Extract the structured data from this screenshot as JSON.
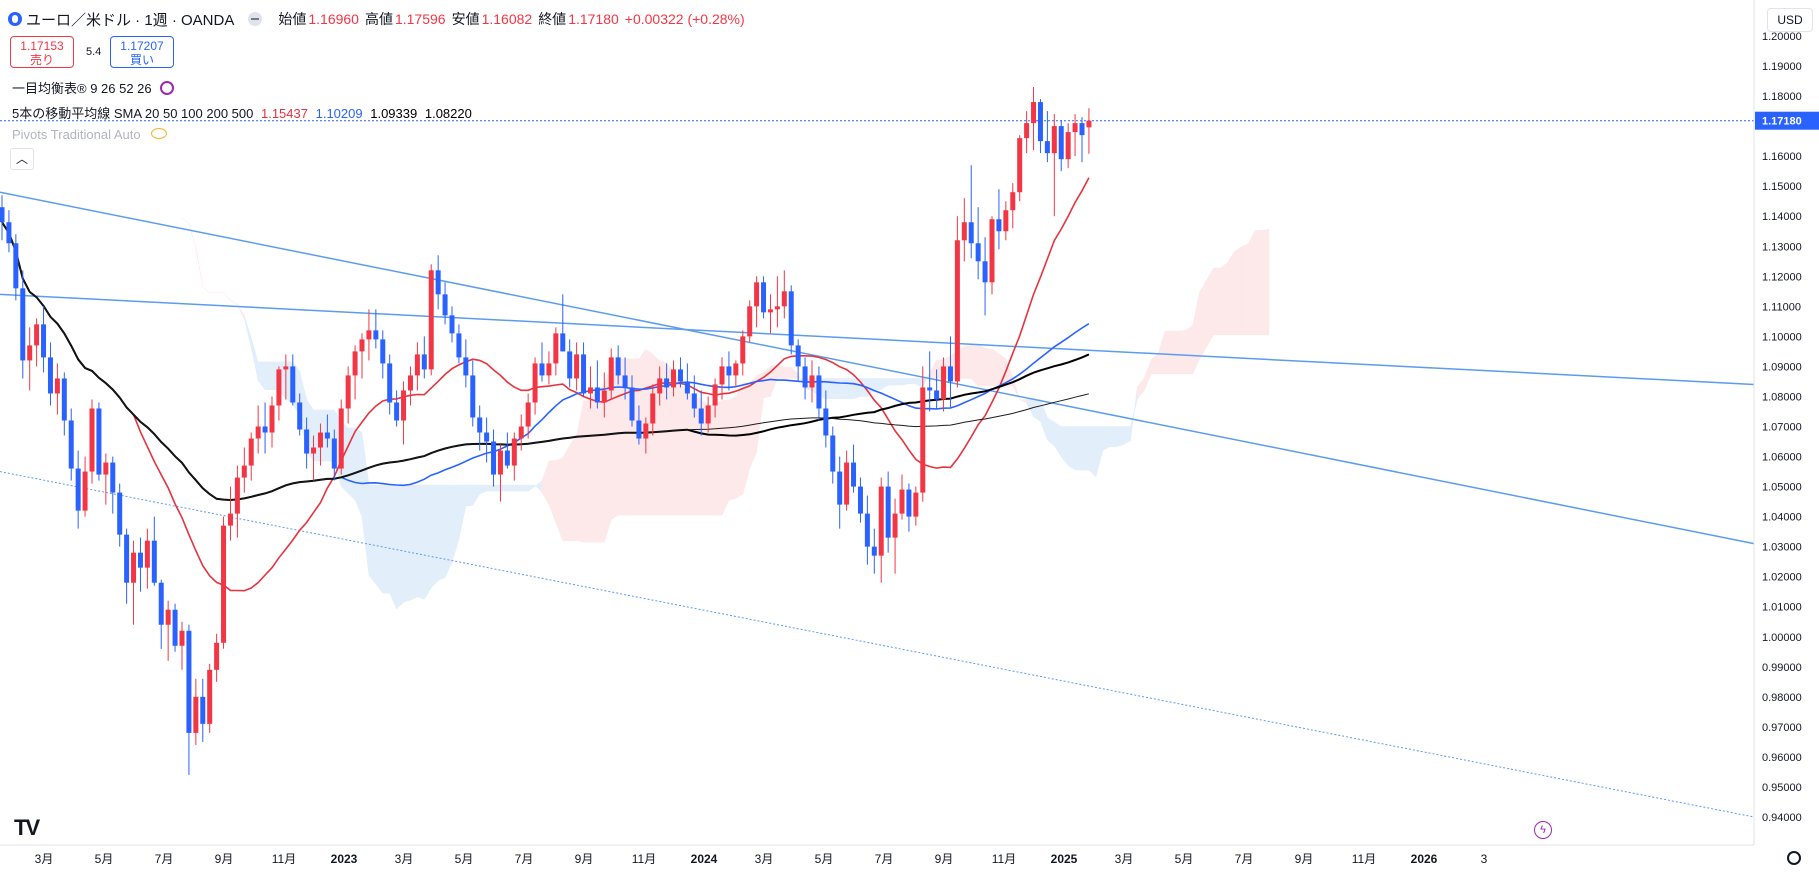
{
  "header": {
    "symbol": "ユーロ／米ドル · 1週 · OANDA",
    "open_label": "始値",
    "open": "1.16960",
    "high_label": "高値",
    "high": "1.17596",
    "low_label": "安値",
    "low": "1.16082",
    "close_label": "終値",
    "close": "1.17180",
    "change": "+0.00322 (+0.28%)"
  },
  "trade": {
    "sell_price": "1.17153",
    "sell_label": "売り",
    "buy_price": "1.17207",
    "buy_label": "買い",
    "spread": "5.4"
  },
  "indicators": {
    "ichimoku": "一目均衡表® 9 26 52 26",
    "ma_label": "5本の移動平均線 SMA 20 50 100 200 500",
    "ma_values": [
      "1.15437",
      "1.10209",
      "1.09339",
      "1.08220"
    ],
    "pivots": "Pivots Traditional Auto"
  },
  "currency": "USD",
  "collapse_icon": "chevron-up-icon",
  "colors": {
    "up": "#f23645",
    "down": "#2962ff",
    "sma20": "#e5333f",
    "sma50": "#2962ff",
    "sma100": "#000000",
    "sma200": "#1b1b1b",
    "trend": "#5b9cf0",
    "cloud_up": "#fde8ea",
    "cloud_down": "#e3eefb"
  },
  "chart_data": {
    "type": "candlestick",
    "timeframe": "1W",
    "ylim": [
      0.935,
      1.205
    ],
    "y_ticks": [
      "1.20000",
      "1.19000",
      "1.18000",
      "1.16000",
      "1.15000",
      "1.14000",
      "1.13000",
      "1.12000",
      "1.11000",
      "1.10000",
      "1.09000",
      "1.08000",
      "1.07000",
      "1.06000",
      "1.05000",
      "1.04000",
      "1.03000",
      "1.02000",
      "1.01000",
      "1.00000",
      "0.99000",
      "0.98000",
      "0.97000",
      "0.96000",
      "0.95000",
      "0.94000"
    ],
    "last_price": "1.17180",
    "x_ticks": [
      "3月",
      "5月",
      "7月",
      "9月",
      "11月",
      "2023",
      "3月",
      "5月",
      "7月",
      "9月",
      "11月",
      "2024",
      "3月",
      "5月",
      "7月",
      "9月",
      "11月",
      "2025",
      "3月",
      "5月",
      "7月",
      "9月",
      "11月",
      "2026",
      "3"
    ],
    "x_tick_months": [
      2,
      4,
      6,
      8,
      10,
      12,
      14,
      16,
      18,
      20,
      22,
      24,
      26,
      28,
      30,
      32,
      34,
      36,
      38,
      40,
      42,
      44,
      46,
      48,
      50
    ],
    "start_month": 0.6,
    "candles": [
      [
        1.143,
        1.147,
        1.132,
        1.138
      ],
      [
        1.138,
        1.142,
        1.128,
        1.131
      ],
      [
        1.131,
        1.134,
        1.112,
        1.116
      ],
      [
        1.116,
        1.122,
        1.086,
        1.092
      ],
      [
        1.092,
        1.103,
        1.082,
        1.097
      ],
      [
        1.097,
        1.106,
        1.09,
        1.104
      ],
      [
        1.104,
        1.11,
        1.088,
        1.093
      ],
      [
        1.093,
        1.098,
        1.077,
        1.081
      ],
      [
        1.081,
        1.091,
        1.074,
        1.086
      ],
      [
        1.086,
        1.088,
        1.067,
        1.072
      ],
      [
        1.072,
        1.076,
        1.052,
        1.056
      ],
      [
        1.056,
        1.062,
        1.036,
        1.042
      ],
      [
        1.042,
        1.06,
        1.04,
        1.055
      ],
      [
        1.055,
        1.079,
        1.051,
        1.076
      ],
      [
        1.076,
        1.078,
        1.052,
        1.054
      ],
      [
        1.054,
        1.061,
        1.044,
        1.058
      ],
      [
        1.058,
        1.06,
        1.041,
        1.048
      ],
      [
        1.048,
        1.051,
        1.03,
        1.034
      ],
      [
        1.034,
        1.036,
        1.011,
        1.018
      ],
      [
        1.018,
        1.032,
        1.004,
        1.028
      ],
      [
        1.028,
        1.033,
        1.015,
        1.023
      ],
      [
        1.023,
        1.036,
        1.016,
        1.032
      ],
      [
        1.032,
        1.04,
        1.017,
        1.018
      ],
      [
        1.018,
        1.019,
        0.996,
        1.004
      ],
      [
        1.004,
        1.012,
        0.992,
        1.009
      ],
      [
        1.009,
        1.011,
        0.995,
        0.997
      ],
      [
        0.997,
        1.005,
        0.989,
        1.002
      ],
      [
        1.002,
        1.004,
        0.954,
        0.968
      ],
      [
        0.968,
        0.986,
        0.964,
        0.98
      ],
      [
        0.98,
        0.986,
        0.965,
        0.971
      ],
      [
        0.971,
        0.991,
        0.968,
        0.989
      ],
      [
        0.989,
        1.001,
        0.985,
        0.998
      ],
      [
        0.998,
        1.04,
        0.996,
        1.037
      ],
      [
        1.037,
        1.05,
        1.032,
        1.041
      ],
      [
        1.041,
        1.057,
        1.033,
        1.053
      ],
      [
        1.053,
        1.063,
        1.048,
        1.057
      ],
      [
        1.057,
        1.068,
        1.052,
        1.066
      ],
      [
        1.066,
        1.077,
        1.061,
        1.07
      ],
      [
        1.07,
        1.078,
        1.061,
        1.068
      ],
      [
        1.068,
        1.08,
        1.063,
        1.077
      ],
      [
        1.077,
        1.09,
        1.072,
        1.089
      ],
      [
        1.089,
        1.094,
        1.079,
        1.09
      ],
      [
        1.09,
        1.094,
        1.077,
        1.078
      ],
      [
        1.078,
        1.081,
        1.067,
        1.069
      ],
      [
        1.069,
        1.073,
        1.056,
        1.061
      ],
      [
        1.061,
        1.067,
        1.052,
        1.063
      ],
      [
        1.063,
        1.071,
        1.057,
        1.068
      ],
      [
        1.068,
        1.074,
        1.063,
        1.066
      ],
      [
        1.066,
        1.069,
        1.052,
        1.056
      ],
      [
        1.056,
        1.079,
        1.054,
        1.076
      ],
      [
        1.076,
        1.09,
        1.071,
        1.087
      ],
      [
        1.087,
        1.097,
        1.079,
        1.095
      ],
      [
        1.095,
        1.101,
        1.086,
        1.099
      ],
      [
        1.099,
        1.109,
        1.092,
        1.102
      ],
      [
        1.102,
        1.109,
        1.096,
        1.099
      ],
      [
        1.099,
        1.102,
        1.086,
        1.091
      ],
      [
        1.091,
        1.094,
        1.074,
        1.078
      ],
      [
        1.078,
        1.082,
        1.07,
        1.072
      ],
      [
        1.072,
        1.085,
        1.064,
        1.082
      ],
      [
        1.082,
        1.09,
        1.077,
        1.087
      ],
      [
        1.087,
        1.098,
        1.082,
        1.094
      ],
      [
        1.094,
        1.1,
        1.086,
        1.089
      ],
      [
        1.089,
        1.124,
        1.087,
        1.122
      ],
      [
        1.122,
        1.127,
        1.109,
        1.114
      ],
      [
        1.114,
        1.118,
        1.104,
        1.107
      ],
      [
        1.107,
        1.11,
        1.098,
        1.101
      ],
      [
        1.101,
        1.104,
        1.091,
        1.093
      ],
      [
        1.093,
        1.099,
        1.083,
        1.087
      ],
      [
        1.087,
        1.092,
        1.07,
        1.073
      ],
      [
        1.073,
        1.077,
        1.062,
        1.068
      ],
      [
        1.068,
        1.073,
        1.058,
        1.065
      ],
      [
        1.065,
        1.069,
        1.05,
        1.054
      ],
      [
        1.054,
        1.064,
        1.045,
        1.062
      ],
      [
        1.062,
        1.068,
        1.056,
        1.057
      ],
      [
        1.057,
        1.068,
        1.052,
        1.066
      ],
      [
        1.066,
        1.074,
        1.062,
        1.07
      ],
      [
        1.07,
        1.081,
        1.066,
        1.078
      ],
      [
        1.078,
        1.093,
        1.074,
        1.091
      ],
      [
        1.091,
        1.098,
        1.085,
        1.087
      ],
      [
        1.087,
        1.095,
        1.084,
        1.091
      ],
      [
        1.091,
        1.103,
        1.087,
        1.101
      ],
      [
        1.101,
        1.114,
        1.095,
        1.095
      ],
      [
        1.095,
        1.099,
        1.083,
        1.086
      ],
      [
        1.086,
        1.098,
        1.082,
        1.094
      ],
      [
        1.094,
        1.098,
        1.08,
        1.081
      ],
      [
        1.081,
        1.09,
        1.076,
        1.083
      ],
      [
        1.083,
        1.092,
        1.076,
        1.078
      ],
      [
        1.078,
        1.088,
        1.073,
        1.082
      ],
      [
        1.082,
        1.096,
        1.079,
        1.093
      ],
      [
        1.093,
        1.097,
        1.084,
        1.087
      ],
      [
        1.087,
        1.093,
        1.079,
        1.083
      ],
      [
        1.083,
        1.087,
        1.07,
        1.072
      ],
      [
        1.072,
        1.077,
        1.064,
        1.066
      ],
      [
        1.066,
        1.073,
        1.061,
        1.071
      ],
      [
        1.071,
        1.084,
        1.067,
        1.081
      ],
      [
        1.081,
        1.09,
        1.077,
        1.086
      ],
      [
        1.086,
        1.091,
        1.079,
        1.083
      ],
      [
        1.083,
        1.092,
        1.08,
        1.089
      ],
      [
        1.089,
        1.093,
        1.083,
        1.085
      ],
      [
        1.085,
        1.091,
        1.079,
        1.081
      ],
      [
        1.081,
        1.087,
        1.073,
        1.076
      ],
      [
        1.076,
        1.082,
        1.067,
        1.071
      ],
      [
        1.071,
        1.08,
        1.068,
        1.077
      ],
      [
        1.077,
        1.086,
        1.073,
        1.084
      ],
      [
        1.084,
        1.093,
        1.079,
        1.09
      ],
      [
        1.09,
        1.095,
        1.082,
        1.087
      ],
      [
        1.087,
        1.092,
        1.083,
        1.091
      ],
      [
        1.091,
        1.102,
        1.087,
        1.1
      ],
      [
        1.1,
        1.112,
        1.098,
        1.11
      ],
      [
        1.11,
        1.12,
        1.103,
        1.118
      ],
      [
        1.118,
        1.12,
        1.106,
        1.108
      ],
      [
        1.108,
        1.114,
        1.101,
        1.109
      ],
      [
        1.109,
        1.12,
        1.103,
        1.11
      ],
      [
        1.11,
        1.122,
        1.106,
        1.115
      ],
      [
        1.115,
        1.117,
        1.094,
        1.097
      ],
      [
        1.097,
        1.099,
        1.085,
        1.09
      ],
      [
        1.09,
        1.093,
        1.079,
        1.083
      ],
      [
        1.083,
        1.092,
        1.078,
        1.087
      ],
      [
        1.087,
        1.09,
        1.072,
        1.076
      ],
      [
        1.076,
        1.082,
        1.063,
        1.067
      ],
      [
        1.067,
        1.07,
        1.051,
        1.055
      ],
      [
        1.055,
        1.06,
        1.036,
        1.044
      ],
      [
        1.044,
        1.062,
        1.042,
        1.058
      ],
      [
        1.058,
        1.064,
        1.048,
        1.05
      ],
      [
        1.05,
        1.053,
        1.038,
        1.041
      ],
      [
        1.041,
        1.047,
        1.024,
        1.03
      ],
      [
        1.03,
        1.036,
        1.021,
        1.027
      ],
      [
        1.027,
        1.053,
        1.018,
        1.05
      ],
      [
        1.05,
        1.055,
        1.028,
        1.033
      ],
      [
        1.033,
        1.046,
        1.021,
        1.041
      ],
      [
        1.041,
        1.054,
        1.039,
        1.049
      ],
      [
        1.049,
        1.051,
        1.035,
        1.04
      ],
      [
        1.04,
        1.05,
        1.037,
        1.048
      ],
      [
        1.048,
        1.09,
        1.045,
        1.083
      ],
      [
        1.083,
        1.095,
        1.075,
        1.082
      ],
      [
        1.082,
        1.089,
        1.076,
        1.079
      ],
      [
        1.079,
        1.093,
        1.075,
        1.09
      ],
      [
        1.09,
        1.1,
        1.076,
        1.085
      ],
      [
        1.085,
        1.14,
        1.083,
        1.132
      ],
      [
        1.132,
        1.146,
        1.125,
        1.138
      ],
      [
        1.138,
        1.157,
        1.126,
        1.131
      ],
      [
        1.131,
        1.143,
        1.119,
        1.125
      ],
      [
        1.125,
        1.133,
        1.107,
        1.118
      ],
      [
        1.118,
        1.14,
        1.114,
        1.139
      ],
      [
        1.139,
        1.149,
        1.129,
        1.135
      ],
      [
        1.135,
        1.145,
        1.132,
        1.142
      ],
      [
        1.142,
        1.151,
        1.136,
        1.148
      ],
      [
        1.148,
        1.167,
        1.145,
        1.166
      ],
      [
        1.166,
        1.175,
        1.161,
        1.171
      ],
      [
        1.171,
        1.183,
        1.162,
        1.178
      ],
      [
        1.178,
        1.179,
        1.161,
        1.165
      ],
      [
        1.165,
        1.175,
        1.158,
        1.161
      ],
      [
        1.161,
        1.174,
        1.14,
        1.17
      ],
      [
        1.17,
        1.172,
        1.155,
        1.159
      ],
      [
        1.159,
        1.171,
        1.156,
        1.168
      ],
      [
        1.168,
        1.174,
        1.16,
        1.171
      ],
      [
        1.171,
        1.173,
        1.158,
        1.167
      ],
      [
        1.1696,
        1.17596,
        1.16082,
        1.1718
      ]
    ]
  }
}
